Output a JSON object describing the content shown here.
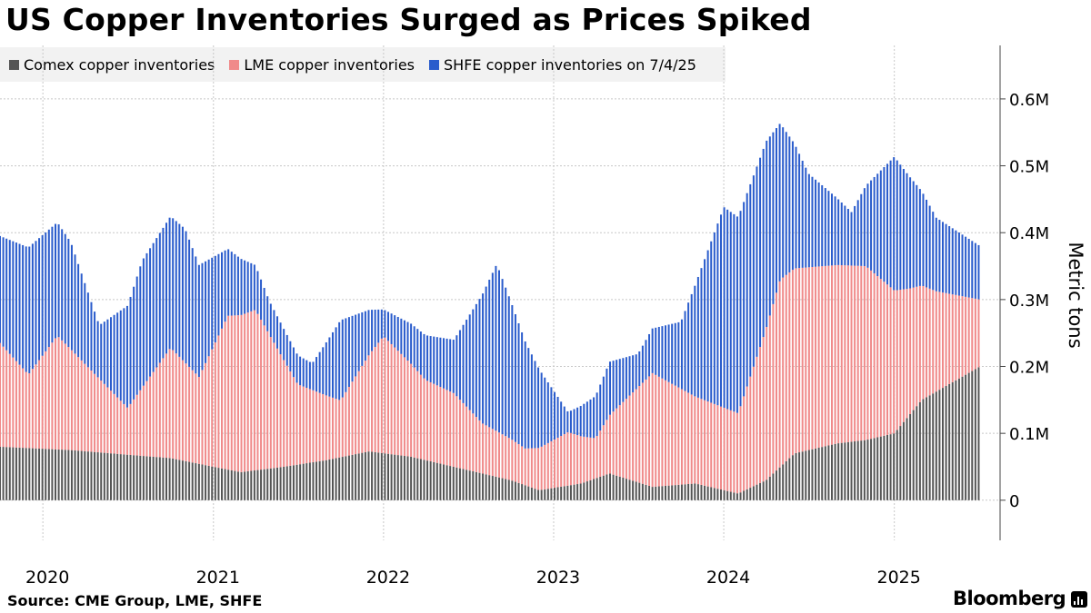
{
  "title": "US Copper Inventories Surged as Prices Spiked",
  "source": "Source: CME Group, LME, SHFE",
  "brand": "Bloomberg",
  "brand_icon": "bloomberg-terminal-icon",
  "colors": {
    "comex": "#555555",
    "lme": "#f08a8a",
    "shfe": "#2a5ccc",
    "grid": "#c8c8c8",
    "axis": "#444444"
  },
  "chart_data": {
    "type": "bar",
    "stacked": true,
    "ylabel": "Metric tons",
    "y_ticks": [
      "0",
      "0.1M",
      "0.2M",
      "0.3M",
      "0.4M",
      "0.5M",
      "0.6M"
    ],
    "y_tick_values": [
      0,
      100000,
      200000,
      300000,
      400000,
      500000,
      600000
    ],
    "ylim": [
      -60000,
      680000
    ],
    "x_labels": [
      "2020",
      "2021",
      "2022",
      "2023",
      "2024",
      "2025"
    ],
    "x_label_dates": [
      "2020-01-01",
      "2021-01-01",
      "2022-01-01",
      "2023-01-01",
      "2024-01-01",
      "2025-01-01"
    ],
    "x_range": [
      "2019-10-01",
      "2025-07-04"
    ],
    "grid": true,
    "legend_position": "top-left",
    "series": [
      {
        "name": "Comex copper inventories",
        "anchors": [
          [
            "2019-10-01",
            80000
          ],
          [
            "2020-03-01",
            75000
          ],
          [
            "2020-07-01",
            68000
          ],
          [
            "2020-10-01",
            63000
          ],
          [
            "2021-01-01",
            50000
          ],
          [
            "2021-03-01",
            42000
          ],
          [
            "2021-06-01",
            50000
          ],
          [
            "2021-09-01",
            60000
          ],
          [
            "2021-12-01",
            73000
          ],
          [
            "2022-03-01",
            65000
          ],
          [
            "2022-07-01",
            45000
          ],
          [
            "2022-10-01",
            30000
          ],
          [
            "2022-12-01",
            15000
          ],
          [
            "2023-03-01",
            25000
          ],
          [
            "2023-05-01",
            40000
          ],
          [
            "2023-08-01",
            20000
          ],
          [
            "2023-11-01",
            25000
          ],
          [
            "2024-02-01",
            10000
          ],
          [
            "2024-04-01",
            30000
          ],
          [
            "2024-06-01",
            70000
          ],
          [
            "2024-09-01",
            85000
          ],
          [
            "2024-11-01",
            90000
          ],
          [
            "2025-01-01",
            100000
          ],
          [
            "2025-03-01",
            150000
          ],
          [
            "2025-07-04",
            200000
          ]
        ]
      },
      {
        "name": "LME copper inventories",
        "anchors": [
          [
            "2019-10-01",
            155000
          ],
          [
            "2019-12-01",
            110000
          ],
          [
            "2020-02-01",
            170000
          ],
          [
            "2020-04-01",
            130000
          ],
          [
            "2020-07-01",
            70000
          ],
          [
            "2020-10-01",
            165000
          ],
          [
            "2020-12-01",
            130000
          ],
          [
            "2021-02-01",
            230000
          ],
          [
            "2021-04-01",
            240000
          ],
          [
            "2021-07-01",
            120000
          ],
          [
            "2021-10-01",
            85000
          ],
          [
            "2022-01-01",
            175000
          ],
          [
            "2022-04-01",
            120000
          ],
          [
            "2022-06-01",
            110000
          ],
          [
            "2022-08-01",
            75000
          ],
          [
            "2022-11-01",
            55000
          ],
          [
            "2023-02-01",
            80000
          ],
          [
            "2023-04-01",
            60000
          ],
          [
            "2023-08-01",
            170000
          ],
          [
            "2023-11-01",
            130000
          ],
          [
            "2024-02-01",
            120000
          ],
          [
            "2024-05-01",
            280000
          ],
          [
            "2024-08-01",
            270000
          ],
          [
            "2024-11-01",
            260000
          ],
          [
            "2025-02-01",
            190000
          ],
          [
            "2025-04-01",
            150000
          ],
          [
            "2025-07-04",
            100000
          ]
        ]
      },
      {
        "name": "SHFE copper inventories on 7/4/25",
        "anchors": [
          [
            "2019-10-01",
            160000
          ],
          [
            "2019-12-01",
            190000
          ],
          [
            "2020-03-01",
            160000
          ],
          [
            "2020-05-01",
            80000
          ],
          [
            "2020-08-01",
            190000
          ],
          [
            "2020-11-01",
            200000
          ],
          [
            "2021-02-01",
            100000
          ],
          [
            "2021-05-01",
            50000
          ],
          [
            "2021-08-01",
            40000
          ],
          [
            "2021-10-01",
            120000
          ],
          [
            "2022-01-01",
            40000
          ],
          [
            "2022-03-01",
            60000
          ],
          [
            "2022-06-01",
            80000
          ],
          [
            "2022-09-01",
            250000
          ],
          [
            "2022-11-01",
            160000
          ],
          [
            "2023-02-01",
            30000
          ],
          [
            "2023-05-01",
            80000
          ],
          [
            "2023-07-01",
            50000
          ],
          [
            "2023-10-01",
            100000
          ],
          [
            "2024-01-01",
            300000
          ],
          [
            "2024-04-01",
            280000
          ],
          [
            "2024-07-01",
            140000
          ],
          [
            "2024-10-01",
            80000
          ],
          [
            "2025-01-01",
            200000
          ],
          [
            "2025-04-01",
            110000
          ],
          [
            "2025-07-04",
            80000
          ]
        ]
      }
    ]
  }
}
